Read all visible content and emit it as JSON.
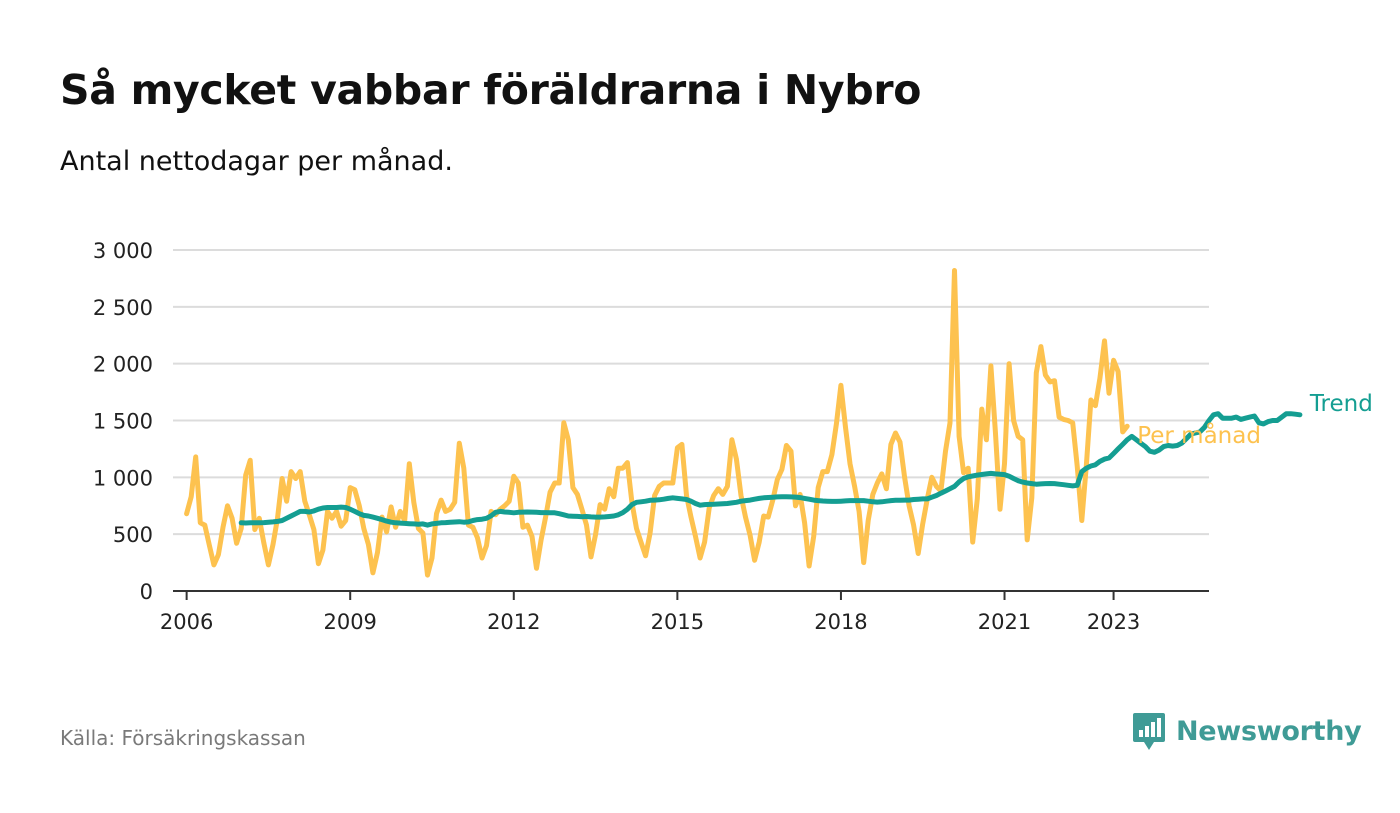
{
  "title": "Så mycket vabbar föräldrarna i Nybro",
  "subtitle": "Antal nettodagar per månad.",
  "source": "Källa: Försäkringskassan",
  "brand": {
    "name": "Newsworthy",
    "icon": "newsworthy-logo-icon",
    "color": "#3f9b96"
  },
  "chart_data": {
    "type": "line",
    "title": "Så mycket vabbar föräldrarna i Nybro",
    "subtitle": "Antal nettodagar per månad.",
    "xlabel": "",
    "ylabel": "",
    "ylim": [
      0,
      3000
    ],
    "yticks": [
      0,
      500,
      1000,
      1500,
      2000,
      2500,
      3000
    ],
    "ytick_labels": [
      "0",
      "500",
      "1 000",
      "1 500",
      "2 000",
      "2 500",
      "3 000"
    ],
    "xlim": [
      "2005-10",
      "2024-10"
    ],
    "xticks": [
      {
        "label": "2006",
        "date": "2006-01"
      },
      {
        "label": "2009",
        "date": "2009-01"
      },
      {
        "label": "2012",
        "date": "2012-01"
      },
      {
        "label": "2015",
        "date": "2015-01"
      },
      {
        "label": "2018",
        "date": "2018-01"
      },
      {
        "label": "2021",
        "date": "2021-01"
      },
      {
        "label": "2023",
        "date": "2023-01"
      }
    ],
    "grid": true,
    "legend": "end-of-line labels",
    "series": [
      {
        "name": "Per månad",
        "color": "#fdc24f",
        "start": "2006-01",
        "values": [
          680,
          830,
          1180,
          600,
          580,
          400,
          230,
          320,
          560,
          750,
          640,
          420,
          550,
          1020,
          1150,
          540,
          640,
          420,
          230,
          410,
          640,
          990,
          790,
          1050,
          990,
          1050,
          790,
          670,
          540,
          240,
          360,
          700,
          640,
          700,
          570,
          620,
          910,
          890,
          750,
          550,
          410,
          160,
          340,
          650,
          520,
          740,
          560,
          700,
          620,
          1120,
          780,
          550,
          510,
          140,
          290,
          680,
          800,
          700,
          720,
          780,
          1300,
          1080,
          580,
          560,
          470,
          290,
          400,
          700,
          670,
          720,
          750,
          790,
          1010,
          950,
          560,
          580,
          480,
          200,
          450,
          650,
          870,
          950,
          950,
          1480,
          1330,
          910,
          850,
          720,
          580,
          300,
          500,
          760,
          720,
          900,
          830,
          1080,
          1080,
          1130,
          780,
          550,
          430,
          310,
          510,
          840,
          920,
          950,
          950,
          950,
          1260,
          1290,
          840,
          650,
          480,
          290,
          430,
          730,
          840,
          900,
          850,
          920,
          1330,
          1160,
          840,
          650,
          490,
          270,
          430,
          660,
          650,
          800,
          980,
          1070,
          1280,
          1230,
          750,
          850,
          600,
          220,
          480,
          910,
          1050,
          1050,
          1200,
          1470,
          1810,
          1440,
          1120,
          920,
          700,
          250,
          620,
          850,
          950,
          1030,
          900,
          1290,
          1390,
          1310,
          1000,
          750,
          580,
          330,
          590,
          810,
          1000,
          920,
          880,
          1230,
          1480,
          2820,
          1360,
          1040,
          1080,
          430,
          810,
          1600,
          1330,
          1980,
          1400,
          720,
          1120,
          2000,
          1500,
          1360,
          1330,
          450,
          820,
          1920,
          2150,
          1900,
          1840,
          1850,
          1530,
          1510,
          1500,
          1480,
          1100,
          620,
          1100,
          1680,
          1630,
          1870,
          2200,
          1740,
          2030,
          1930,
          1400,
          1450
        ]
      },
      {
        "name": "Trend",
        "color": "#149e92",
        "start": "2007-01",
        "values": [
          600,
          598,
          600,
          600,
          600,
          602,
          604,
          608,
          612,
          620,
          640,
          660,
          680,
          700,
          700,
          695,
          705,
          720,
          730,
          735,
          735,
          735,
          738,
          735,
          720,
          700,
          680,
          665,
          660,
          650,
          640,
          628,
          615,
          605,
          600,
          597,
          595,
          592,
          590,
          588,
          590,
          580,
          590,
          595,
          600,
          602,
          605,
          607,
          610,
          605,
          608,
          620,
          628,
          632,
          640,
          662,
          692,
          700,
          695,
          692,
          688,
          692,
          694,
          695,
          694,
          692,
          690,
          690,
          688,
          688,
          680,
          670,
          660,
          658,
          656,
          654,
          655,
          652,
          650,
          650,
          652,
          655,
          660,
          670,
          690,
          720,
          760,
          780,
          785,
          790,
          798,
          800,
          802,
          808,
          815,
          820,
          815,
          810,
          805,
          790,
          770,
          755,
          760,
          762,
          763,
          765,
          768,
          770,
          775,
          780,
          790,
          795,
          800,
          808,
          815,
          820,
          823,
          825,
          828,
          830,
          830,
          828,
          826,
          822,
          815,
          808,
          800,
          795,
          792,
          790,
          788,
          788,
          790,
          793,
          795,
          795,
          795,
          795,
          790,
          785,
          782,
          785,
          790,
          795,
          798,
          798,
          800,
          800,
          805,
          808,
          810,
          810,
          825,
          840,
          860,
          880,
          900,
          920,
          960,
          990,
          1005,
          1012,
          1020,
          1025,
          1030,
          1035,
          1030,
          1028,
          1024,
          1010,
          990,
          970,
          958,
          950,
          945,
          940,
          942,
          945,
          946,
          945,
          940,
          935,
          930,
          925,
          930,
          1050,
          1080,
          1100,
          1110,
          1140,
          1160,
          1170,
          1210,
          1250,
          1290,
          1330,
          1360,
          1330,
          1300,
          1270,
          1230,
          1220,
          1240,
          1270,
          1280,
          1275,
          1280,
          1300,
          1340,
          1380,
          1390,
          1400,
          1440,
          1500,
          1550,
          1560,
          1520,
          1520,
          1520,
          1530,
          1510,
          1520,
          1530,
          1540,
          1480,
          1470,
          1490,
          1500,
          1500,
          1530,
          1560,
          1560,
          1555,
          1550
        ]
      }
    ],
    "annotations": [
      {
        "text": "Trend",
        "series": "Trend",
        "color": "#149e92"
      },
      {
        "text": "Per månad",
        "series": "Per månad",
        "color": "#fdc24f"
      }
    ]
  }
}
